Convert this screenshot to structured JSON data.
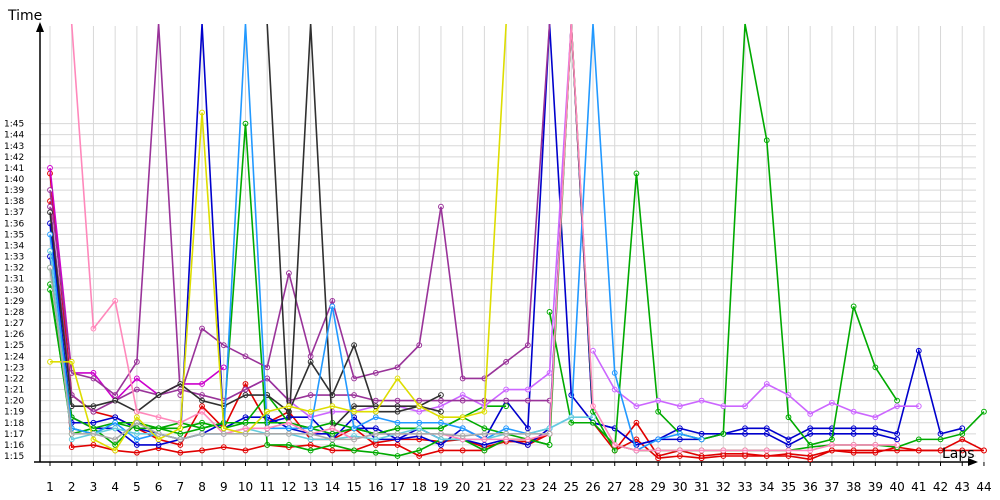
{
  "chart_data": {
    "type": "line",
    "title": "",
    "ylabel": "Time",
    "xlabel": "Laps",
    "x": [
      1,
      2,
      3,
      4,
      5,
      6,
      7,
      8,
      9,
      10,
      11,
      12,
      13,
      14,
      15,
      16,
      17,
      18,
      19,
      20,
      21,
      22,
      23,
      24,
      25,
      26,
      27,
      28,
      29,
      30,
      31,
      32,
      33,
      34,
      35,
      36,
      37,
      38,
      39,
      40,
      41,
      42,
      43,
      44
    ],
    "y_ticks": [
      "1:15",
      "1:16",
      "1:17",
      "1:18",
      "1:19",
      "1:20",
      "1:21",
      "1:22",
      "1:23",
      "1:24",
      "1:25",
      "1:26",
      "1:27",
      "1:28",
      "1:29",
      "1:30",
      "1:31",
      "1:32",
      "1:33",
      "1:34",
      "1:35",
      "1:36",
      "1:37",
      "1:38",
      "1:39",
      "1:40",
      "1:41",
      "1:42",
      "1:43",
      "1:44",
      "1:45"
    ],
    "ylim_seconds": [
      74,
      108
    ],
    "grid": true,
    "legend": "none",
    "series": [
      {
        "color": "#e00000",
        "values": [
          100.5,
          80.5,
          79.0,
          78.5,
          77.5,
          76.5,
          76.0,
          79.5,
          77.5,
          81.5,
          78.0,
          79.0,
          76.5,
          76.5,
          77.5,
          76.0,
          76.0,
          75.0,
          75.5,
          75.5,
          75.5,
          76.5,
          76.0,
          77.0,
          120,
          78.0,
          75.5,
          78.0,
          75.0,
          75.5,
          75.0,
          75.2,
          75.2,
          75.0,
          75.2,
          75.0,
          75.5,
          75.5,
          75.5,
          75.5,
          75.5,
          75.5,
          76.5,
          75.5
        ]
      },
      {
        "color": "#e00000",
        "values": [
          98.0,
          75.8,
          76.0,
          75.5,
          75.3,
          75.7,
          75.3,
          75.5,
          75.8,
          75.5,
          76.0,
          75.8,
          76.0,
          75.5,
          75.5,
          76.2,
          76.5,
          76.5,
          76.3,
          76.5,
          75.8,
          76.3,
          76.3,
          77.0,
          null,
          null,
          75.5,
          76.5,
          74.8,
          75.0,
          74.8,
          75.0,
          75.0,
          75.0,
          75.0,
          74.7,
          75.5,
          75.3,
          75.3,
          75.8,
          75.5,
          75.5,
          75.5,
          75.5
        ]
      },
      {
        "color": "#0000cc",
        "values": [
          96.0,
          78.0,
          78.0,
          78.5,
          77.5,
          77.0,
          76.5,
          120,
          77.5,
          78.5,
          78.5,
          77.5,
          77.0,
          77.0,
          77.5,
          77.5,
          76.5,
          77.5,
          76.5,
          76.5,
          76.0,
          76.5,
          76.0,
          77.5,
          120,
          78.0,
          77.5,
          76.0,
          76.5,
          77.5,
          77.0,
          77.0,
          77.5,
          77.5,
          76.5,
          77.5,
          77.5,
          77.5,
          77.5,
          77.0,
          84.5,
          77.0,
          77.5,
          null
        ]
      },
      {
        "color": "#0000cc",
        "values": [
          93.0,
          78.5,
          77.5,
          77.5,
          76.0,
          76.0,
          76.5,
          77.0,
          78.0,
          78.0,
          78.0,
          78.5,
          78.5,
          76.5,
          78.5,
          76.5,
          76.5,
          76.8,
          76.0,
          77.5,
          76.5,
          80.0,
          77.5,
          120,
          80.5,
          78.0,
          77.5,
          76.0,
          76.5,
          76.5,
          76.5,
          77.0,
          77.0,
          77.0,
          76.0,
          77.0,
          77.0,
          77.0,
          77.0,
          76.5,
          null,
          null,
          null,
          null
        ]
      },
      {
        "color": "#00aa00",
        "values": [
          90.5,
          77.0,
          77.5,
          76.0,
          78.0,
          77.5,
          77.0,
          77.5,
          78.0,
          105,
          76.0,
          76.0,
          75.5,
          76.0,
          75.5,
          75.3,
          75.0,
          75.5,
          76.5,
          76.5,
          75.5,
          76.5,
          76.5,
          76.0,
          120,
          79.0,
          75.5,
          100.5,
          79.0,
          77.0,
          76.5,
          77.0,
          120,
          103.5,
          78.5,
          76.0,
          76.5,
          88.5,
          83.0,
          80.0,
          null,
          null,
          null,
          null
        ]
      },
      {
        "color": "#00aa00",
        "values": [
          90.0,
          77.5,
          77.0,
          78.0,
          77.5,
          77.5,
          78.0,
          77.5,
          78.0,
          78.0,
          80.5,
          78.0,
          77.5,
          77.0,
          77.5,
          77.0,
          77.5,
          77.5,
          77.5,
          78.5,
          79.5,
          79.5,
          null,
          88.0,
          78.0,
          78.0,
          76.0,
          75.5,
          75.5,
          75.5,
          75.5,
          75.5,
          75.5,
          75.5,
          75.5,
          75.8,
          76.0,
          76.0,
          76.0,
          75.8,
          76.5,
          76.5,
          77.0,
          79.0
        ]
      },
      {
        "color": "#00aa00",
        "values": [
          92.0,
          78.5,
          77.5,
          78.0,
          78.0,
          77.5,
          77.5,
          78.0,
          77.5,
          78.0,
          78.0,
          78.0,
          77.5,
          78.0,
          77.5,
          77.0,
          77.5,
          77.5,
          77.5,
          78.5,
          77.5,
          77.0,
          76.5,
          76.0,
          null,
          null,
          null,
          null,
          null,
          null,
          null,
          null,
          null,
          null,
          null,
          null,
          null,
          null,
          null,
          null,
          null,
          null,
          null,
          null
        ]
      },
      {
        "color": "#cc00cc",
        "values": [
          101.0,
          82.5,
          82.5,
          80.0,
          82.0,
          80.5,
          81.5,
          81.5,
          83.0,
          null,
          null,
          null,
          null,
          null,
          null,
          null,
          null,
          null,
          null,
          null,
          null,
          null,
          null,
          null,
          null,
          null,
          null,
          null,
          null,
          null,
          null,
          null,
          null,
          null,
          null,
          null,
          null,
          null,
          null,
          null,
          null,
          null,
          null,
          null
        ]
      },
      {
        "color": "#cc66ff",
        "values": [
          null,
          null,
          null,
          null,
          null,
          null,
          null,
          null,
          null,
          null,
          null,
          null,
          null,
          null,
          null,
          null,
          null,
          null,
          null,
          null,
          null,
          null,
          null,
          null,
          null,
          84.5,
          81.0,
          79.5,
          80.0,
          79.5,
          80.0,
          79.5,
          79.5,
          81.5,
          80.5,
          78.8,
          79.8,
          79.0,
          78.5,
          79.5,
          79.5,
          null,
          null,
          null
        ]
      },
      {
        "color": "#cc66ff",
        "values": [
          null,
          null,
          null,
          null,
          null,
          null,
          null,
          null,
          null,
          81.0,
          82.0,
          80.0,
          78.5,
          79.0,
          79.0,
          79.5,
          79.5,
          79.0,
          79.5,
          80.5,
          79.5,
          81.0,
          81.0,
          82.5,
          120,
          null,
          null,
          null,
          null,
          null,
          null,
          null,
          null,
          null,
          null,
          null,
          null,
          null,
          null,
          null,
          null,
          null,
          null,
          null
        ]
      },
      {
        "color": "#993399",
        "values": [
          99.0,
          82.5,
          82.0,
          80.5,
          83.5,
          120,
          80.5,
          86.5,
          85.0,
          84.0,
          83.0,
          91.5,
          84.0,
          89.0,
          82.0,
          82.5,
          83.0,
          85.0,
          97.5,
          82.0,
          82.0,
          83.5,
          85.0,
          120,
          null,
          null,
          null,
          null,
          null,
          null,
          null,
          null,
          null,
          null,
          null,
          null,
          null,
          null,
          null,
          null,
          null,
          null,
          null,
          null
        ]
      },
      {
        "color": "#993399",
        "values": [
          97.5,
          80.5,
          79.0,
          80.0,
          81.0,
          80.5,
          81.0,
          80.5,
          80.0,
          81.0,
          82.0,
          80.0,
          80.5,
          80.5,
          80.5,
          80.0,
          80.0,
          80.0,
          80.0,
          80.0,
          80.0,
          80.0,
          80.0,
          80.0,
          null,
          null,
          null,
          null,
          null,
          null,
          null,
          null,
          null,
          null,
          null,
          null,
          null,
          null,
          null,
          null,
          null,
          null,
          null,
          null
        ]
      },
      {
        "color": "#303030",
        "values": [
          97.0,
          79.5,
          79.5,
          80.0,
          79.0,
          80.5,
          81.5,
          80.0,
          79.5,
          80.5,
          80.5,
          79.0,
          83.5,
          80.5,
          85.0,
          79.0,
          79.0,
          79.5,
          80.5,
          null,
          null,
          null,
          null,
          null,
          null,
          null,
          null,
          null,
          null,
          null,
          null,
          null,
          null,
          null,
          null,
          null,
          null,
          null,
          null,
          null,
          null,
          null,
          null,
          null
        ]
      },
      {
        "color": "#303030",
        "values": [
          null,
          null,
          null,
          null,
          null,
          null,
          null,
          null,
          null,
          null,
          120,
          77.5,
          120,
          77.5,
          79.5,
          79.5,
          79.5,
          79.5,
          79.0,
          null,
          null,
          null,
          null,
          null,
          null,
          null,
          null,
          null,
          null,
          null,
          null,
          null,
          null,
          null,
          null,
          null,
          null,
          null,
          null,
          null,
          null,
          null,
          null,
          null
        ]
      },
      {
        "color": "#2299ff",
        "values": [
          95.0,
          77.5,
          77.0,
          78.0,
          76.5,
          77.0,
          76.5,
          77.0,
          77.0,
          120,
          77.5,
          77.5,
          77.5,
          88.5,
          77.5,
          78.5,
          78.0,
          78.0,
          78.0,
          77.5,
          76.5,
          77.5,
          77.0,
          77.5,
          78.5,
          120,
          82.5,
          75.5,
          76.5,
          77.0,
          76.5,
          null,
          null,
          null,
          null,
          null,
          null,
          null,
          null,
          null,
          null,
          null,
          null,
          null
        ]
      },
      {
        "color": "#66ccdd",
        "values": [
          93.5,
          76.5,
          77.0,
          77.5,
          77.0,
          77.0,
          76.5,
          77.0,
          77.0,
          77.5,
          77.0,
          77.0,
          76.5,
          76.5,
          76.8,
          76.5,
          77.0,
          77.5,
          76.5,
          76.5,
          76.5,
          77.0,
          77.0,
          77.5,
          78.5,
          78.5,
          null,
          null,
          null,
          null,
          null,
          null,
          null,
          null,
          null,
          null,
          null,
          null,
          null,
          null,
          null,
          null,
          null,
          null
        ]
      },
      {
        "color": "#ff88bb",
        "values": [
          null,
          120,
          86.5,
          89.0,
          79.0,
          78.5,
          78.0,
          79.0,
          77.0,
          77.5,
          77.5,
          78.0,
          77.0,
          77.5,
          76.5,
          77.0,
          77.0,
          77.0,
          77.0,
          76.5,
          76.5,
          76.5,
          76.5,
          77.0,
          120,
          79.5,
          76.0,
          75.5,
          75.5,
          75.5,
          75.5,
          75.5,
          75.5,
          75.5,
          75.5,
          75.5,
          76.0,
          76.0,
          76.0,
          76.0,
          null,
          null,
          null,
          null
        ]
      },
      {
        "color": "#dddd00",
        "values": [
          83.5,
          83.5,
          76.5,
          75.5,
          78.5,
          76.5,
          77.5,
          106,
          77.5,
          77.0,
          79.0,
          79.5,
          79.0,
          79.5,
          79.0,
          79.0,
          82.0,
          79.5,
          78.5,
          78.5,
          79.0,
          120,
          null,
          null,
          null,
          null,
          null,
          null,
          null,
          null,
          null,
          null,
          null,
          null,
          null,
          null,
          null,
          null,
          null,
          null,
          null,
          null,
          null,
          null
        ]
      },
      {
        "color": "#aaaaaa",
        "values": [
          92.0,
          77.0,
          77.0,
          76.5,
          78.0,
          77.0,
          76.5,
          77.0,
          77.0,
          77.0,
          77.0,
          77.0,
          77.0,
          76.5,
          76.5,
          77.0,
          77.0,
          77.0,
          77.0,
          76.8,
          77.0,
          77.0,
          77.0,
          77.0,
          null,
          null,
          null,
          null,
          null,
          null,
          null,
          null,
          null,
          null,
          null,
          null,
          null,
          null,
          null,
          null,
          null,
          null,
          null,
          null
        ]
      }
    ]
  }
}
